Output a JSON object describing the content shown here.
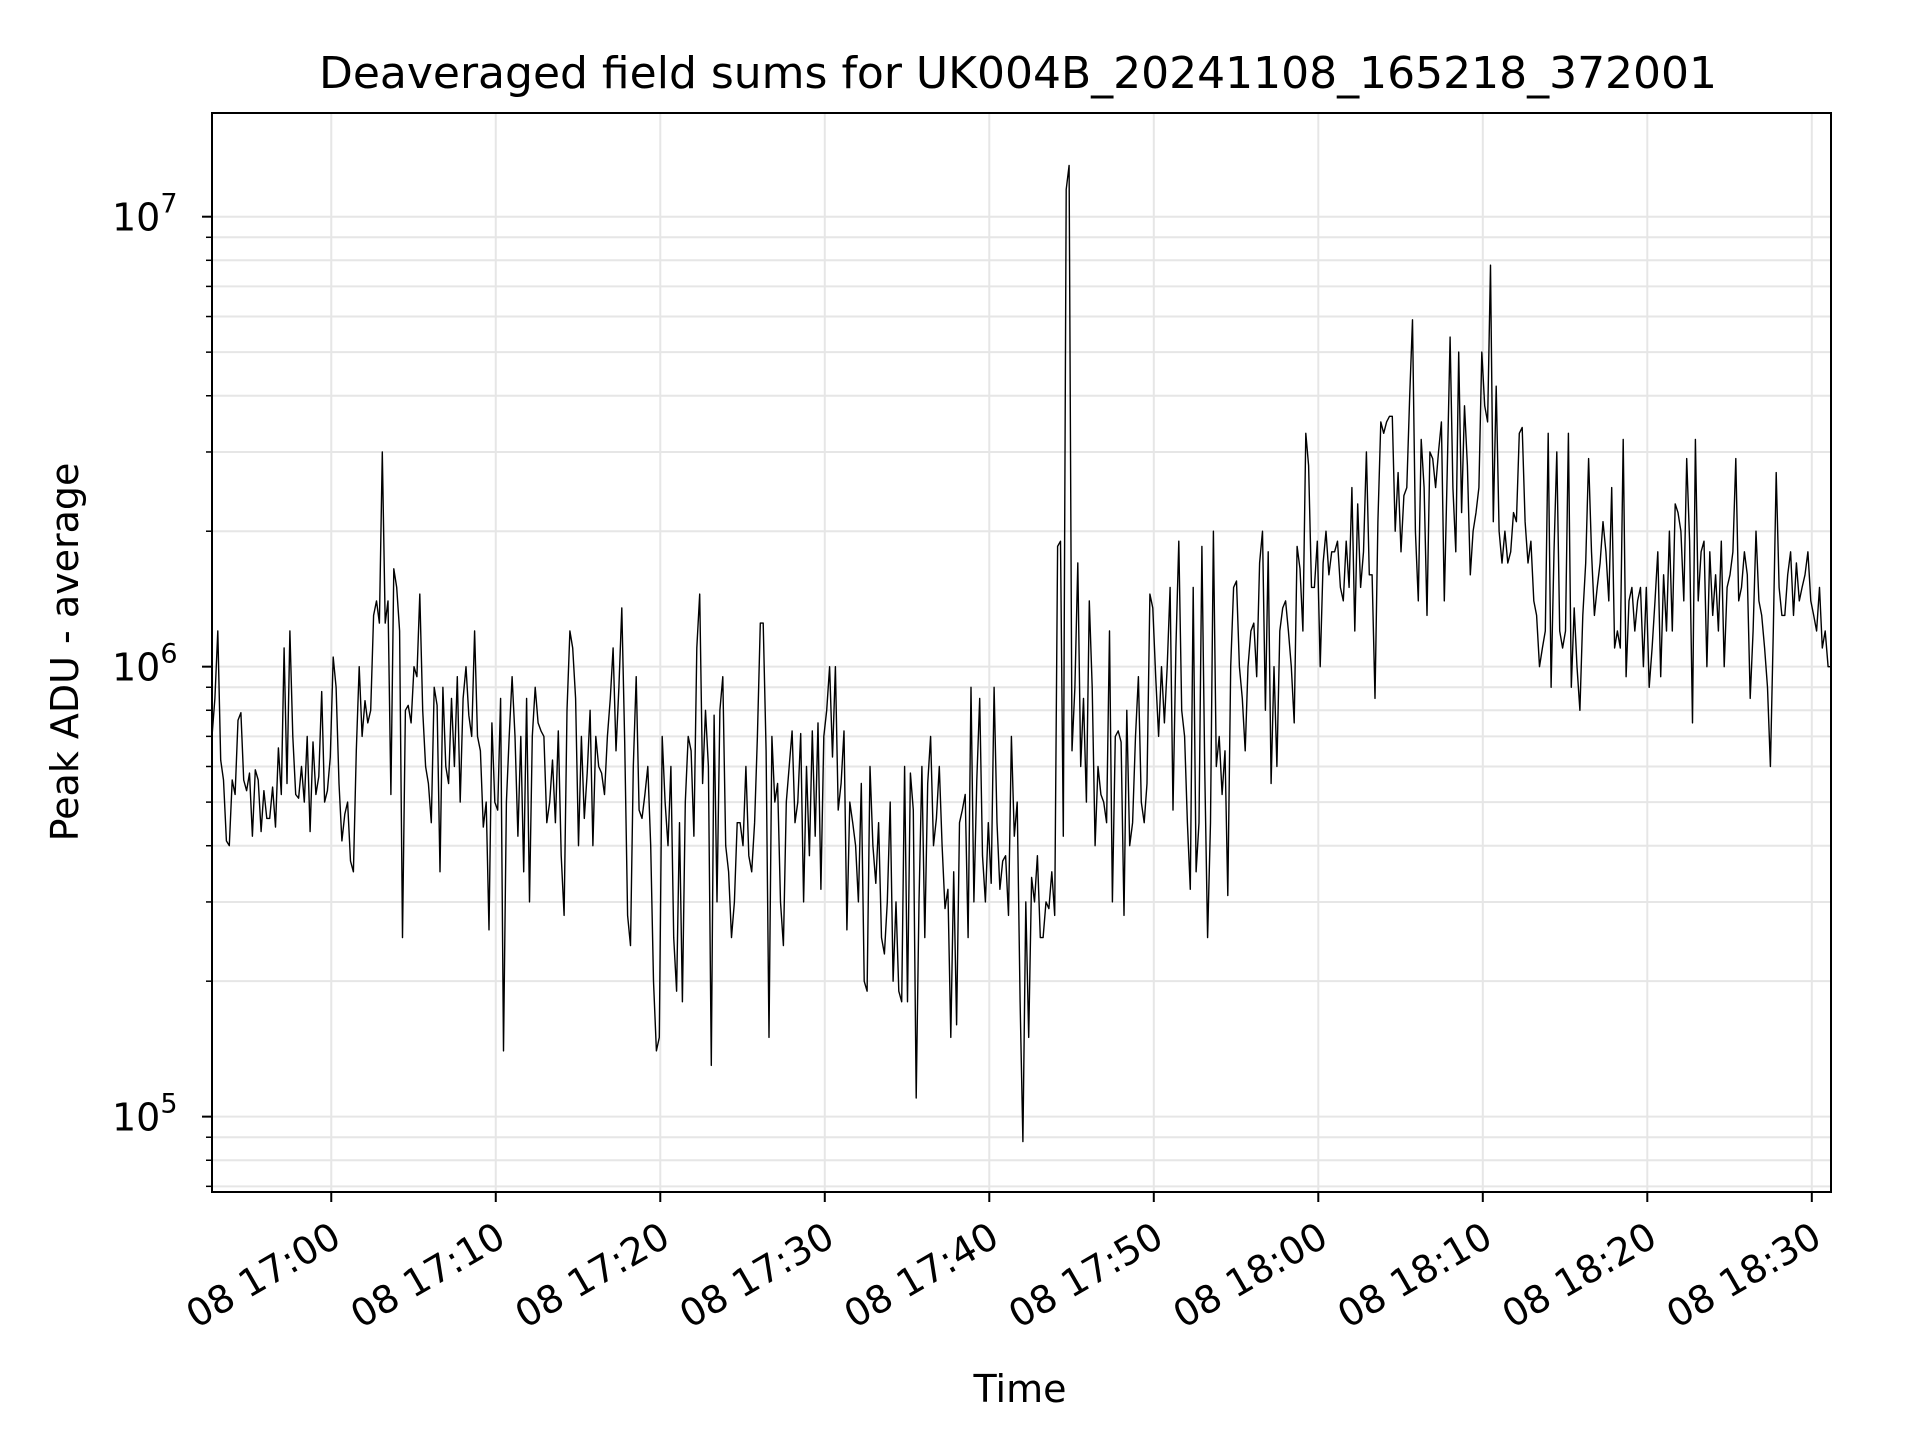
{
  "chart_data": {
    "type": "line",
    "title": "Deaveraged field sums for UK004B_20241108_165218_372001",
    "xlabel": "Time",
    "ylabel": "Peak ADU - average",
    "yscale": "log",
    "ylim": [
      68000,
      17000000
    ],
    "xlim": [
      "2024-11-08 16:52:45",
      "2024-11-08 18:31:10"
    ],
    "grid": true,
    "line_color": "#000000",
    "grid_color": "#e6e6e6",
    "x_ticks": [
      {
        "time": "2024-11-08 17:00:00",
        "label": "08 17:00"
      },
      {
        "time": "2024-11-08 17:10:00",
        "label": "08 17:10"
      },
      {
        "time": "2024-11-08 17:20:00",
        "label": "08 17:20"
      },
      {
        "time": "2024-11-08 17:30:00",
        "label": "08 17:30"
      },
      {
        "time": "2024-11-08 17:40:00",
        "label": "08 17:40"
      },
      {
        "time": "2024-11-08 17:50:00",
        "label": "08 17:50"
      },
      {
        "time": "2024-11-08 18:00:00",
        "label": "08 18:00"
      },
      {
        "time": "2024-11-08 18:10:00",
        "label": "08 18:10"
      },
      {
        "time": "2024-11-08 18:20:00",
        "label": "08 18:20"
      },
      {
        "time": "2024-11-08 18:30:00",
        "label": "08 18:30"
      }
    ],
    "y_ticks": [
      {
        "value": 100000,
        "base": "10",
        "exp": "5"
      },
      {
        "value": 1000000,
        "base": "10",
        "exp": "6"
      },
      {
        "value": 10000000,
        "base": "10",
        "exp": "7"
      }
    ],
    "series": [
      {
        "start": "2024-11-08 16:52:45",
        "end": "2024-11-08 18:31:10",
        "values": [
          700000,
          850000,
          1200000,
          620000,
          560000,
          410000,
          400000,
          560000,
          520000,
          760000,
          790000,
          560000,
          530000,
          580000,
          420000,
          590000,
          560000,
          430000,
          530000,
          460000,
          460000,
          540000,
          440000,
          660000,
          520000,
          1100000,
          550000,
          1200000,
          700000,
          520000,
          510000,
          600000,
          500000,
          700000,
          430000,
          680000,
          520000,
          570000,
          880000,
          500000,
          530000,
          630000,
          1050000,
          900000,
          550000,
          410000,
          470000,
          500000,
          370000,
          350000,
          650000,
          1000000,
          700000,
          840000,
          750000,
          800000,
          1300000,
          1400000,
          1250000,
          3000000,
          1250000,
          1400000,
          520000,
          1650000,
          1500000,
          1200000,
          250000,
          800000,
          820000,
          750000,
          1000000,
          950000,
          1450000,
          800000,
          600000,
          550000,
          450000,
          900000,
          820000,
          350000,
          900000,
          600000,
          550000,
          850000,
          600000,
          950000,
          500000,
          850000,
          1000000,
          780000,
          700000,
          1200000,
          700000,
          650000,
          440000,
          500000,
          260000,
          750000,
          500000,
          480000,
          850000,
          140000,
          500000,
          700000,
          950000,
          700000,
          420000,
          700000,
          350000,
          850000,
          300000,
          700000,
          900000,
          750000,
          720000,
          700000,
          450000,
          500000,
          620000,
          450000,
          720000,
          380000,
          280000,
          800000,
          1200000,
          1100000,
          850000,
          400000,
          700000,
          460000,
          580000,
          800000,
          400000,
          700000,
          600000,
          580000,
          520000,
          700000,
          850000,
          1100000,
          650000,
          900000,
          1350000,
          680000,
          280000,
          240000,
          600000,
          950000,
          480000,
          460000,
          520000,
          600000,
          400000,
          200000,
          140000,
          150000,
          700000,
          500000,
          400000,
          600000,
          250000,
          190000,
          450000,
          180000,
          500000,
          700000,
          650000,
          420000,
          1100000,
          1450000,
          550000,
          800000,
          600000,
          130000,
          780000,
          300000,
          800000,
          950000,
          400000,
          350000,
          250000,
          300000,
          450000,
          450000,
          400000,
          600000,
          380000,
          350000,
          450000,
          700000,
          1250000,
          1250000,
          650000,
          150000,
          700000,
          500000,
          550000,
          300000,
          240000,
          500000,
          600000,
          720000,
          450000,
          500000,
          710000,
          300000,
          600000,
          380000,
          720000,
          420000,
          750000,
          320000,
          700000,
          800000,
          1000000,
          630000,
          1000000,
          480000,
          550000,
          720000,
          260000,
          500000,
          450000,
          400000,
          300000,
          550000,
          200000,
          190000,
          600000,
          400000,
          330000,
          450000,
          250000,
          230000,
          300000,
          500000,
          200000,
          300000,
          190000,
          180000,
          600000,
          180000,
          580000,
          480000,
          110000,
          300000,
          600000,
          250000,
          550000,
          700000,
          400000,
          460000,
          600000,
          400000,
          290000,
          320000,
          150000,
          350000,
          160000,
          450000,
          480000,
          520000,
          250000,
          900000,
          300000,
          560000,
          850000,
          380000,
          300000,
          450000,
          330000,
          900000,
          450000,
          320000,
          370000,
          380000,
          280000,
          700000,
          420000,
          500000,
          180000,
          88000,
          300000,
          150000,
          340000,
          300000,
          380000,
          250000,
          250000,
          300000,
          290000,
          350000,
          280000,
          1850000,
          1900000,
          420000,
          11500000,
          13000000,
          650000,
          900000,
          1700000,
          600000,
          850000,
          500000,
          1400000,
          900000,
          400000,
          600000,
          520000,
          500000,
          450000,
          1200000,
          300000,
          700000,
          720000,
          680000,
          280000,
          800000,
          400000,
          450000,
          700000,
          950000,
          500000,
          450000,
          550000,
          1450000,
          1350000,
          950000,
          700000,
          1000000,
          750000,
          1000000,
          1500000,
          480000,
          1100000,
          1900000,
          800000,
          700000,
          450000,
          320000,
          1500000,
          350000,
          450000,
          1850000,
          580000,
          250000,
          450000,
          2000000,
          600000,
          700000,
          520000,
          650000,
          310000,
          1000000,
          1500000,
          1550000,
          1000000,
          850000,
          650000,
          1000000,
          1200000,
          1250000,
          950000,
          1700000,
          2000000,
          800000,
          1800000,
          550000,
          1000000,
          600000,
          1200000,
          1350000,
          1400000,
          1200000,
          1000000,
          750000,
          1850000,
          1650000,
          1200000,
          3300000,
          2800000,
          1500000,
          1500000,
          1900000,
          1000000,
          1700000,
          2000000,
          1600000,
          1800000,
          1800000,
          1900000,
          1500000,
          1400000,
          1900000,
          1500000,
          2500000,
          1200000,
          2300000,
          1500000,
          1800000,
          3000000,
          1600000,
          1600000,
          850000,
          2100000,
          3500000,
          3300000,
          3500000,
          3600000,
          3600000,
          2000000,
          2700000,
          1800000,
          2400000,
          2500000,
          4000000,
          5900000,
          2000000,
          1400000,
          3200000,
          2500000,
          1300000,
          3000000,
          2900000,
          2500000,
          3000000,
          3500000,
          1400000,
          2700000,
          5400000,
          2500000,
          1800000,
          5000000,
          2200000,
          3800000,
          2800000,
          1600000,
          2000000,
          2200000,
          2500000,
          5000000,
          3800000,
          3500000,
          7800000,
          2100000,
          4200000,
          2000000,
          1700000,
          2000000,
          1700000,
          1800000,
          2200000,
          2100000,
          3300000,
          3400000,
          2100000,
          1700000,
          1900000,
          1400000,
          1300000,
          1000000,
          1100000,
          1200000,
          3300000,
          900000,
          1800000,
          3000000,
          1200000,
          1100000,
          1200000,
          3300000,
          900000,
          1350000,
          1000000,
          800000,
          1300000,
          1700000,
          2900000,
          1800000,
          1300000,
          1500000,
          1700000,
          2100000,
          1800000,
          1400000,
          2500000,
          1100000,
          1200000,
          1100000,
          3200000,
          950000,
          1400000,
          1500000,
          1200000,
          1400000,
          1500000,
          1000000,
          1500000,
          900000,
          1100000,
          1400000,
          1800000,
          950000,
          1600000,
          1200000,
          2000000,
          1200000,
          2300000,
          2200000,
          2000000,
          1400000,
          2900000,
          1900000,
          750000,
          3200000,
          1400000,
          1800000,
          1900000,
          1000000,
          1800000,
          1300000,
          1600000,
          1200000,
          1900000,
          1000000,
          1500000,
          1600000,
          1800000,
          2900000,
          1400000,
          1500000,
          1800000,
          1600000,
          850000,
          1200000,
          2000000,
          1400000,
          1300000,
          1100000,
          900000,
          600000,
          1200000,
          2700000,
          1500000,
          1300000,
          1300000,
          1600000,
          1800000,
          1300000,
          1700000,
          1400000,
          1500000,
          1600000,
          1800000,
          1400000,
          1300000,
          1200000,
          1500000,
          1100000,
          1200000,
          1000000,
          1000000
        ]
      }
    ]
  }
}
